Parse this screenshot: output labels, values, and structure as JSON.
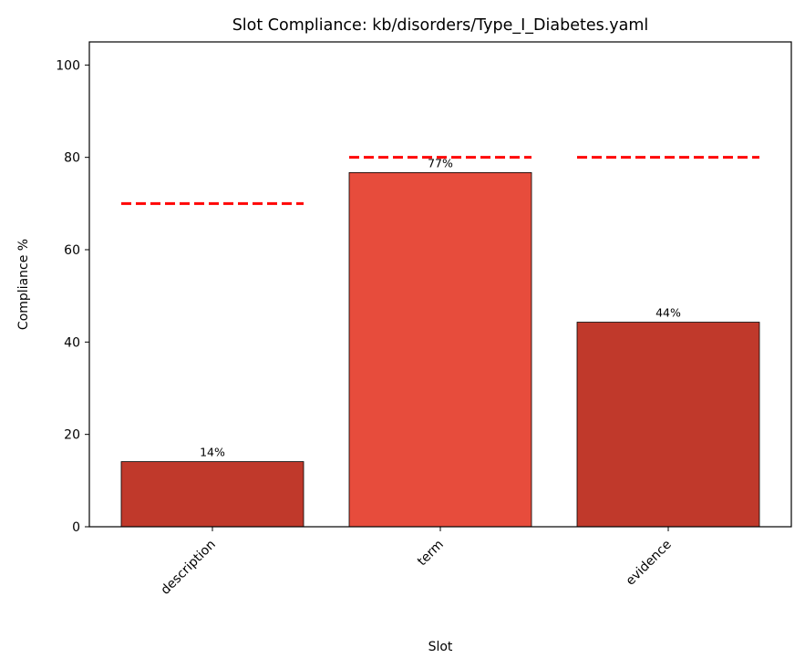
{
  "chart_data": {
    "type": "bar",
    "title": "Slot Compliance: kb/disorders/Type_I_Diabetes.yaml",
    "xlabel": "Slot",
    "ylabel": "Compliance %",
    "categories": [
      "description",
      "term",
      "evidence"
    ],
    "values": [
      14.1,
      76.7,
      44.3
    ],
    "data_labels": [
      "14%",
      "77%",
      "44%"
    ],
    "bar_colors": [
      "#c0392b",
      "#e74c3c",
      "#c0392b"
    ],
    "thresholds": [
      70,
      80,
      80
    ],
    "threshold_color": "#ff0000",
    "threshold_style": "dashed",
    "ylim": [
      0,
      105
    ],
    "yticks": [
      0,
      20,
      40,
      60,
      80,
      100
    ],
    "grid": false,
    "xtick_rotation": 45
  }
}
